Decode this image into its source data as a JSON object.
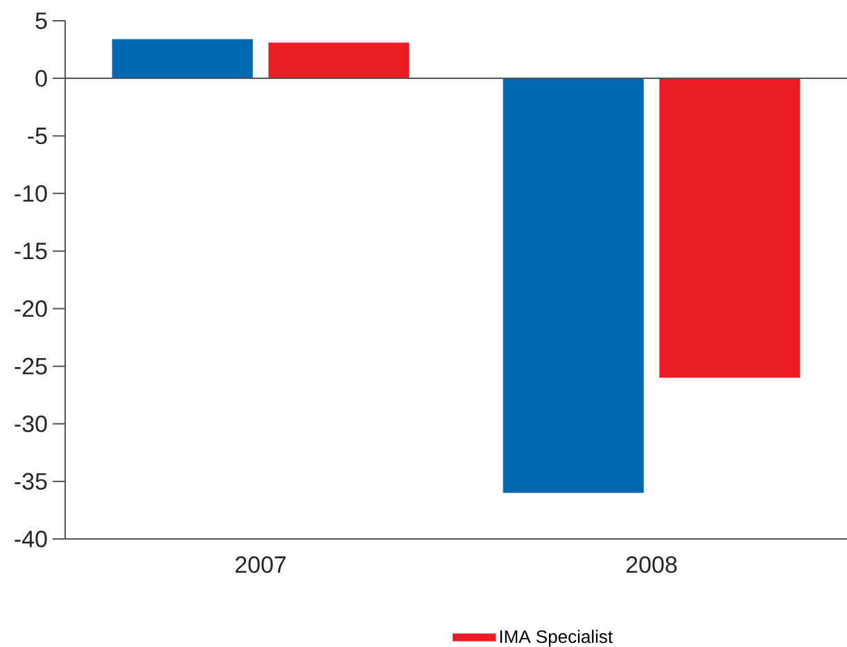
{
  "chart_data": {
    "type": "bar",
    "categories": [
      "2007",
      "2008"
    ],
    "series": [
      {
        "color": "#0067b1",
        "values": [
          3.4,
          -36
        ]
      },
      {
        "name": "IMA Specialist",
        "color": "#ed1c24",
        "values": [
          3.1,
          -26
        ]
      }
    ],
    "ylim": [
      -40,
      5
    ],
    "yticks": [
      -40,
      -35,
      -30,
      -25,
      -20,
      -15,
      -10,
      -5,
      0,
      5
    ],
    "ref_lines": [
      {
        "axis": "y",
        "value": 0,
        "color": "#555555"
      }
    ],
    "grid": false,
    "legend": "bottom"
  }
}
